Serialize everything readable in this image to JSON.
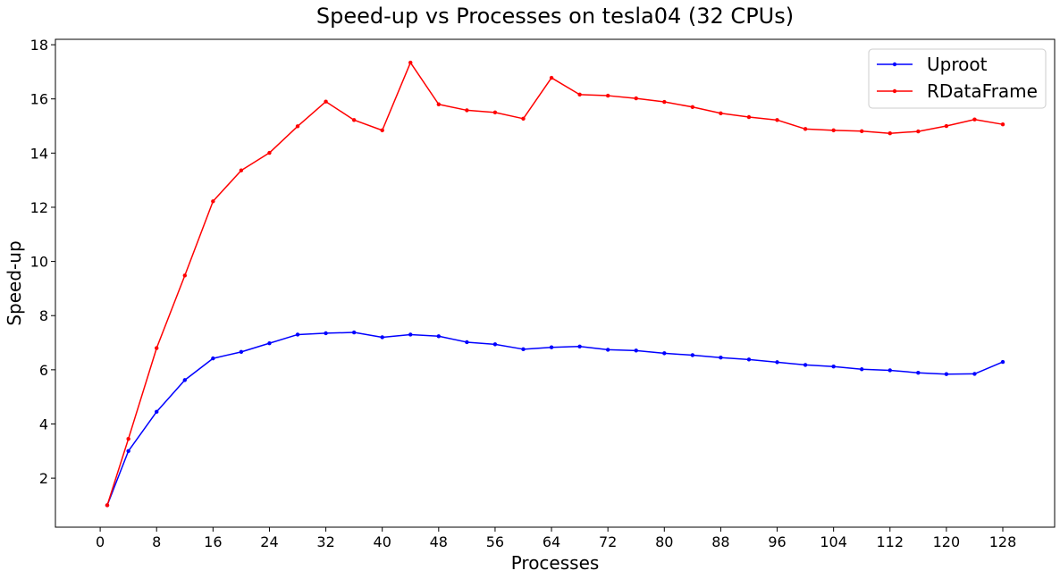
{
  "chart_data": {
    "type": "line",
    "title": "Speed-up vs Processes on tesla04 (32 CPUs)",
    "xlabel": "Processes",
    "ylabel": "Speed-up",
    "xlim": [
      -6.35,
      135.35
    ],
    "ylim": [
      0.19,
      18.2
    ],
    "xticks": [
      0,
      8,
      16,
      24,
      32,
      40,
      48,
      56,
      64,
      72,
      80,
      88,
      96,
      104,
      112,
      120,
      128
    ],
    "yticks": [
      2,
      4,
      6,
      8,
      10,
      12,
      14,
      16,
      18
    ],
    "grid": false,
    "legend_position": "top-right",
    "x": [
      1,
      4,
      8,
      12,
      16,
      20,
      24,
      28,
      32,
      36,
      40,
      44,
      48,
      52,
      56,
      60,
      64,
      68,
      72,
      76,
      80,
      84,
      88,
      92,
      96,
      100,
      104,
      108,
      112,
      116,
      120,
      124,
      128
    ],
    "series": [
      {
        "name": "Uproot",
        "color": "#0000ff",
        "values": [
          1.0,
          3.0,
          4.45,
          5.62,
          6.42,
          6.66,
          6.98,
          7.3,
          7.35,
          7.38,
          7.2,
          7.3,
          7.24,
          7.02,
          6.94,
          6.76,
          6.83,
          6.86,
          6.74,
          6.71,
          6.61,
          6.54,
          6.45,
          6.38,
          6.28,
          6.18,
          6.12,
          6.02,
          5.98,
          5.89,
          5.84,
          5.85,
          6.29
        ]
      },
      {
        "name": "RDataFrame",
        "color": "#ff0000",
        "values": [
          1.0,
          3.45,
          6.8,
          9.48,
          12.22,
          13.36,
          14.01,
          14.99,
          15.9,
          15.22,
          14.84,
          17.34,
          15.8,
          15.58,
          15.5,
          15.27,
          16.78,
          16.16,
          16.12,
          16.02,
          15.89,
          15.7,
          15.47,
          15.33,
          15.22,
          14.89,
          14.84,
          14.81,
          14.73,
          14.8,
          15.0,
          15.24,
          15.06
        ]
      }
    ]
  }
}
